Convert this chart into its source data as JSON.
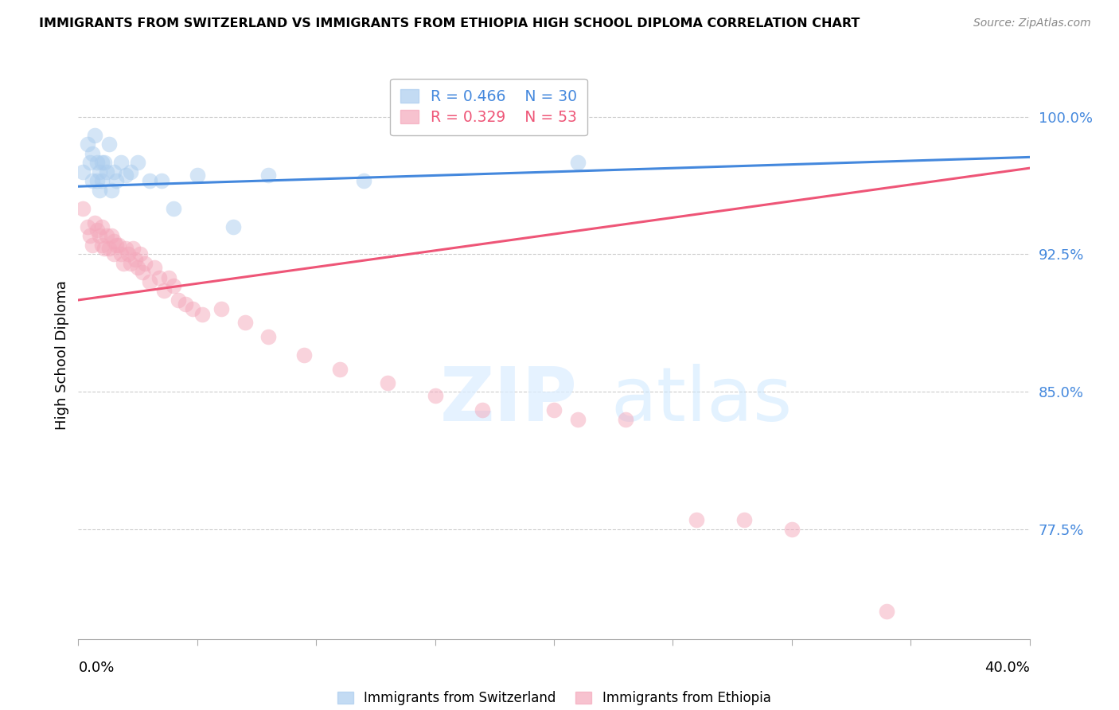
{
  "title": "IMMIGRANTS FROM SWITZERLAND VS IMMIGRANTS FROM ETHIOPIA HIGH SCHOOL DIPLOMA CORRELATION CHART",
  "source": "Source: ZipAtlas.com",
  "ylabel": "High School Diploma",
  "yticks": [
    0.775,
    0.85,
    0.925,
    1.0
  ],
  "ytick_labels": [
    "77.5%",
    "85.0%",
    "92.5%",
    "100.0%"
  ],
  "xlim": [
    0.0,
    0.4
  ],
  "ylim": [
    0.715,
    1.025
  ],
  "legend_r1": "R = 0.466",
  "legend_n1": "N = 30",
  "legend_r2": "R = 0.329",
  "legend_n2": "N = 53",
  "switzerland_color": "#aaccee",
  "ethiopia_color": "#f4a8bb",
  "line_swiss_color": "#4488dd",
  "line_eth_color": "#ee5577",
  "swiss_x": [
    0.002,
    0.004,
    0.005,
    0.006,
    0.006,
    0.007,
    0.008,
    0.008,
    0.009,
    0.009,
    0.01,
    0.01,
    0.011,
    0.012,
    0.013,
    0.014,
    0.015,
    0.016,
    0.018,
    0.02,
    0.022,
    0.025,
    0.03,
    0.035,
    0.04,
    0.05,
    0.065,
    0.08,
    0.12,
    0.21
  ],
  "swiss_y": [
    0.97,
    0.985,
    0.975,
    0.98,
    0.965,
    0.99,
    0.975,
    0.965,
    0.97,
    0.96,
    0.975,
    0.965,
    0.975,
    0.97,
    0.985,
    0.96,
    0.97,
    0.965,
    0.975,
    0.968,
    0.97,
    0.975,
    0.965,
    0.965,
    0.95,
    0.968,
    0.94,
    0.968,
    0.965,
    0.975
  ],
  "ethiopia_x": [
    0.002,
    0.004,
    0.005,
    0.006,
    0.007,
    0.008,
    0.009,
    0.01,
    0.01,
    0.011,
    0.012,
    0.013,
    0.014,
    0.015,
    0.015,
    0.016,
    0.017,
    0.018,
    0.019,
    0.02,
    0.021,
    0.022,
    0.023,
    0.024,
    0.025,
    0.026,
    0.027,
    0.028,
    0.03,
    0.032,
    0.034,
    0.036,
    0.038,
    0.04,
    0.042,
    0.045,
    0.048,
    0.052,
    0.06,
    0.07,
    0.08,
    0.095,
    0.11,
    0.13,
    0.15,
    0.17,
    0.2,
    0.21,
    0.23,
    0.26,
    0.28,
    0.3,
    0.34
  ],
  "ethiopia_y": [
    0.95,
    0.94,
    0.935,
    0.93,
    0.942,
    0.938,
    0.935,
    0.93,
    0.94,
    0.928,
    0.935,
    0.928,
    0.935,
    0.925,
    0.932,
    0.93,
    0.93,
    0.925,
    0.92,
    0.928,
    0.925,
    0.92,
    0.928,
    0.922,
    0.918,
    0.925,
    0.915,
    0.92,
    0.91,
    0.918,
    0.912,
    0.905,
    0.912,
    0.908,
    0.9,
    0.898,
    0.895,
    0.892,
    0.895,
    0.888,
    0.88,
    0.87,
    0.862,
    0.855,
    0.848,
    0.84,
    0.84,
    0.835,
    0.835,
    0.78,
    0.78,
    0.775,
    0.73
  ],
  "swiss_line_x": [
    0.0,
    0.4
  ],
  "swiss_line_y": [
    0.962,
    0.978
  ],
  "eth_line_x": [
    0.0,
    0.4
  ],
  "eth_line_y": [
    0.9,
    0.972
  ]
}
